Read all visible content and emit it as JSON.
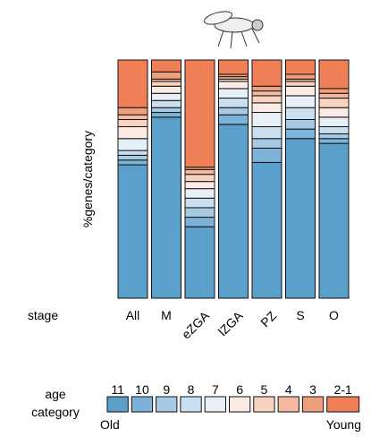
{
  "chart_data": {
    "type": "stacked_bar",
    "y_label": "%genes/category",
    "x_label": "stage",
    "legend_title": "age category",
    "legend_low": "Old",
    "legend_high": "Young",
    "categories": [
      "All",
      "M",
      "eZGA",
      "lZGA",
      "PZ",
      "S",
      "O"
    ],
    "series": [
      {
        "name": "11",
        "color": "#5b9fcb",
        "values": [
          56,
          76,
          30,
          73,
          57,
          67,
          65
        ]
      },
      {
        "name": "10",
        "color": "#7db3d8",
        "values": [
          2,
          2,
          4,
          4,
          6,
          4,
          2
        ]
      },
      {
        "name": "9",
        "color": "#a6cae3",
        "values": [
          2,
          2,
          4,
          3,
          4,
          4,
          2
        ]
      },
      {
        "name": "8",
        "color": "#cadff0",
        "values": [
          2,
          3,
          4,
          4,
          5,
          5,
          3
        ]
      },
      {
        "name": "7",
        "color": "#e8f0f7",
        "values": [
          5,
          3,
          4,
          4,
          6,
          5,
          4
        ]
      },
      {
        "name": "6",
        "color": "#fcebe4",
        "values": [
          5,
          3,
          3,
          3,
          4,
          4,
          4
        ]
      },
      {
        "name": "5",
        "color": "#f8d3c2",
        "values": [
          3,
          2,
          3,
          1,
          3,
          2,
          4
        ]
      },
      {
        "name": "4",
        "color": "#f4b99f",
        "values": [
          2,
          1,
          2,
          1,
          2,
          1,
          2
        ]
      },
      {
        "name": "3",
        "color": "#ef9f7b",
        "values": [
          3,
          3,
          1,
          1,
          2,
          2,
          2
        ]
      },
      {
        "name": "2-1",
        "color": "#ef7f56",
        "values": [
          20,
          5,
          45,
          6,
          11,
          6,
          12
        ]
      }
    ]
  }
}
